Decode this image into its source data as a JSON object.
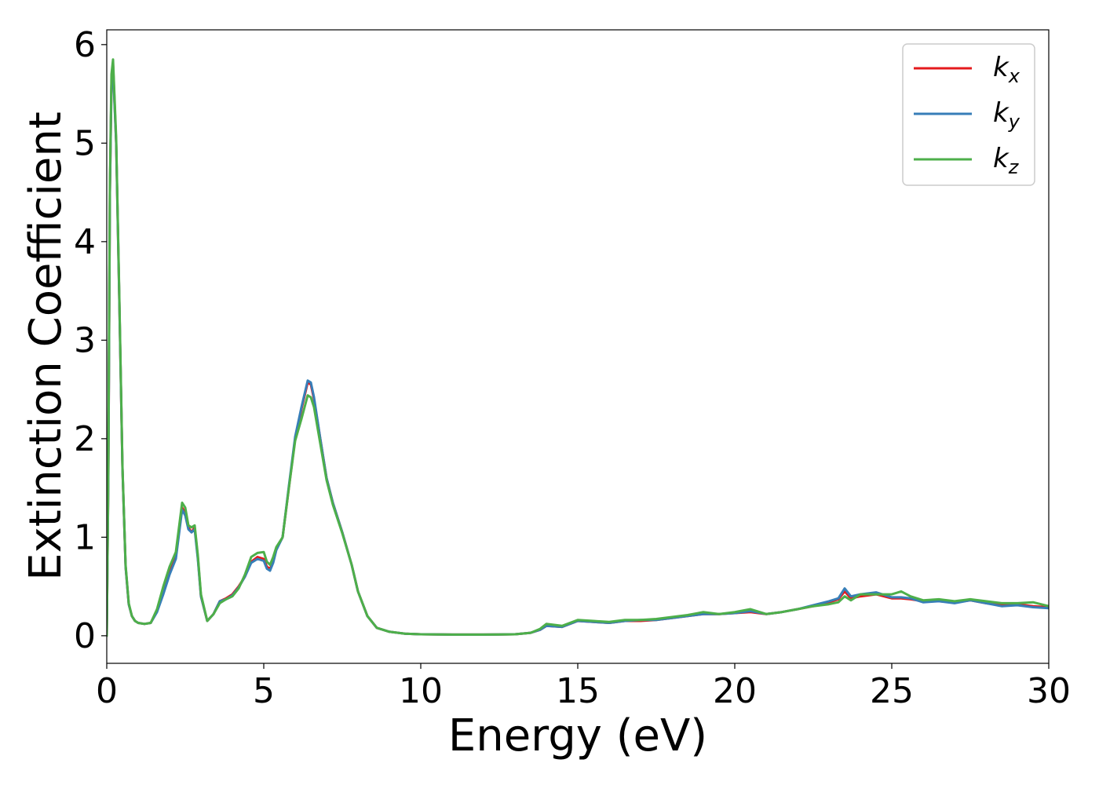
{
  "chart_data": {
    "type": "line",
    "xlabel": "Energy (eV)",
    "ylabel": "Extinction Coefficient",
    "xlim": [
      0,
      30
    ],
    "ylim": [
      -0.28,
      6.15
    ],
    "xticks": [
      0,
      5,
      10,
      15,
      20,
      25,
      30
    ],
    "xtick_labels": [
      "0",
      "5",
      "10",
      "15",
      "20",
      "25",
      "30"
    ],
    "yticks": [
      0,
      1,
      2,
      3,
      4,
      5,
      6
    ],
    "ytick_labels": [
      "0",
      "1",
      "2",
      "3",
      "4",
      "5",
      "6"
    ],
    "grid": false,
    "legend_position": "top-right",
    "series": [
      {
        "name": "k_x",
        "label_base": "k",
        "label_sub": "x",
        "color": "#e41a1c",
        "x": [
          0,
          0.05,
          0.1,
          0.15,
          0.2,
          0.3,
          0.4,
          0.5,
          0.6,
          0.7,
          0.8,
          0.9,
          1.0,
          1.2,
          1.4,
          1.6,
          1.8,
          2.0,
          2.2,
          2.4,
          2.5,
          2.6,
          2.7,
          2.8,
          2.9,
          3.0,
          3.2,
          3.4,
          3.6,
          3.8,
          4.0,
          4.2,
          4.4,
          4.6,
          4.8,
          5.0,
          5.1,
          5.2,
          5.3,
          5.4,
          5.6,
          5.8,
          6.0,
          6.2,
          6.4,
          6.5,
          6.6,
          6.8,
          7.0,
          7.2,
          7.5,
          7.8,
          8.0,
          8.3,
          8.6,
          9.0,
          9.5,
          10,
          11,
          12,
          13,
          13.5,
          13.8,
          14,
          14.5,
          15,
          15.5,
          16,
          16.5,
          17,
          17.5,
          18,
          18.5,
          19,
          19.5,
          20,
          20.5,
          21,
          21.5,
          22,
          22.5,
          23,
          23.3,
          23.5,
          23.7,
          24,
          24.5,
          25,
          25.3,
          25.6,
          26,
          26.5,
          27,
          27.5,
          28,
          28.5,
          29,
          29.5,
          30
        ],
        "y": [
          0,
          1.6,
          4.5,
          5.6,
          5.8,
          5.0,
          3.4,
          1.7,
          0.7,
          0.32,
          0.2,
          0.15,
          0.13,
          0.12,
          0.13,
          0.25,
          0.45,
          0.65,
          0.8,
          1.3,
          1.25,
          1.1,
          1.05,
          1.1,
          0.8,
          0.4,
          0.15,
          0.22,
          0.35,
          0.38,
          0.42,
          0.5,
          0.6,
          0.75,
          0.8,
          0.78,
          0.7,
          0.68,
          0.75,
          0.88,
          1.0,
          1.5,
          2.0,
          2.3,
          2.57,
          2.55,
          2.4,
          2.0,
          1.6,
          1.35,
          1.05,
          0.72,
          0.45,
          0.2,
          0.08,
          0.04,
          0.02,
          0.015,
          0.012,
          0.012,
          0.015,
          0.03,
          0.06,
          0.1,
          0.09,
          0.15,
          0.14,
          0.13,
          0.15,
          0.15,
          0.16,
          0.18,
          0.2,
          0.22,
          0.22,
          0.23,
          0.24,
          0.22,
          0.24,
          0.27,
          0.3,
          0.34,
          0.37,
          0.45,
          0.38,
          0.4,
          0.42,
          0.38,
          0.38,
          0.37,
          0.35,
          0.35,
          0.34,
          0.36,
          0.33,
          0.31,
          0.32,
          0.3,
          0.29
        ]
      },
      {
        "name": "k_y",
        "label_base": "k",
        "label_sub": "y",
        "color": "#377eb8",
        "x": [
          0,
          0.05,
          0.1,
          0.15,
          0.2,
          0.3,
          0.4,
          0.5,
          0.6,
          0.7,
          0.8,
          0.9,
          1.0,
          1.2,
          1.4,
          1.6,
          1.8,
          2.0,
          2.2,
          2.4,
          2.5,
          2.6,
          2.7,
          2.8,
          2.9,
          3.0,
          3.2,
          3.4,
          3.6,
          3.8,
          4.0,
          4.2,
          4.4,
          4.6,
          4.8,
          5.0,
          5.1,
          5.2,
          5.3,
          5.4,
          5.6,
          5.8,
          6.0,
          6.2,
          6.4,
          6.5,
          6.6,
          6.8,
          7.0,
          7.2,
          7.5,
          7.8,
          8.0,
          8.3,
          8.6,
          9.0,
          9.5,
          10,
          11,
          12,
          13,
          13.5,
          13.8,
          14,
          14.5,
          15,
          15.5,
          16,
          16.5,
          17,
          17.5,
          18,
          18.5,
          19,
          19.5,
          20,
          20.5,
          21,
          21.5,
          22,
          22.5,
          23,
          23.3,
          23.5,
          23.7,
          24,
          24.5,
          25,
          25.3,
          25.6,
          26,
          26.5,
          27,
          27.5,
          28,
          28.5,
          29,
          29.5,
          30
        ],
        "y": [
          0,
          1.6,
          4.5,
          5.6,
          5.75,
          5.0,
          3.4,
          1.7,
          0.7,
          0.32,
          0.2,
          0.15,
          0.13,
          0.12,
          0.13,
          0.24,
          0.42,
          0.62,
          0.78,
          1.28,
          1.22,
          1.08,
          1.05,
          1.08,
          0.78,
          0.4,
          0.15,
          0.22,
          0.35,
          0.37,
          0.41,
          0.49,
          0.6,
          0.74,
          0.78,
          0.76,
          0.68,
          0.66,
          0.74,
          0.87,
          1.0,
          1.52,
          2.02,
          2.32,
          2.59,
          2.57,
          2.42,
          2.0,
          1.6,
          1.35,
          1.05,
          0.72,
          0.45,
          0.2,
          0.08,
          0.04,
          0.02,
          0.015,
          0.012,
          0.012,
          0.015,
          0.03,
          0.06,
          0.1,
          0.09,
          0.15,
          0.14,
          0.13,
          0.15,
          0.16,
          0.16,
          0.18,
          0.2,
          0.22,
          0.22,
          0.23,
          0.25,
          0.22,
          0.24,
          0.27,
          0.31,
          0.35,
          0.38,
          0.48,
          0.4,
          0.42,
          0.44,
          0.39,
          0.39,
          0.38,
          0.34,
          0.35,
          0.33,
          0.36,
          0.33,
          0.3,
          0.31,
          0.29,
          0.28
        ]
      },
      {
        "name": "k_z",
        "label_base": "k",
        "label_sub": "z",
        "color": "#4daf4a",
        "x": [
          0,
          0.05,
          0.1,
          0.15,
          0.2,
          0.3,
          0.4,
          0.5,
          0.6,
          0.7,
          0.8,
          0.9,
          1.0,
          1.2,
          1.4,
          1.6,
          1.8,
          2.0,
          2.2,
          2.4,
          2.5,
          2.6,
          2.7,
          2.8,
          2.9,
          3.0,
          3.2,
          3.4,
          3.6,
          3.8,
          4.0,
          4.2,
          4.4,
          4.6,
          4.8,
          5.0,
          5.1,
          5.2,
          5.3,
          5.4,
          5.6,
          5.8,
          6.0,
          6.2,
          6.4,
          6.5,
          6.6,
          6.8,
          7.0,
          7.2,
          7.5,
          7.8,
          8.0,
          8.3,
          8.6,
          9.0,
          9.5,
          10,
          11,
          12,
          13,
          13.5,
          13.8,
          14,
          14.5,
          15,
          15.5,
          16,
          16.5,
          17,
          17.5,
          18,
          18.5,
          19,
          19.5,
          20,
          20.5,
          21,
          21.5,
          22,
          22.5,
          23,
          23.3,
          23.5,
          23.7,
          24,
          24.5,
          25,
          25.3,
          25.6,
          26,
          26.5,
          27,
          27.5,
          28,
          28.5,
          29,
          29.5,
          30
        ],
        "y": [
          0,
          1.7,
          4.6,
          5.7,
          5.85,
          5.05,
          3.45,
          1.72,
          0.72,
          0.33,
          0.2,
          0.15,
          0.13,
          0.12,
          0.13,
          0.27,
          0.5,
          0.7,
          0.85,
          1.35,
          1.3,
          1.12,
          1.1,
          1.12,
          0.82,
          0.42,
          0.15,
          0.22,
          0.33,
          0.37,
          0.4,
          0.48,
          0.62,
          0.8,
          0.84,
          0.85,
          0.75,
          0.72,
          0.8,
          0.9,
          1.0,
          1.5,
          1.98,
          2.2,
          2.44,
          2.42,
          2.32,
          1.95,
          1.58,
          1.33,
          1.04,
          0.72,
          0.45,
          0.2,
          0.08,
          0.04,
          0.02,
          0.015,
          0.012,
          0.012,
          0.015,
          0.03,
          0.07,
          0.12,
          0.1,
          0.16,
          0.15,
          0.14,
          0.16,
          0.16,
          0.17,
          0.19,
          0.21,
          0.24,
          0.22,
          0.24,
          0.27,
          0.22,
          0.24,
          0.27,
          0.3,
          0.32,
          0.34,
          0.4,
          0.36,
          0.42,
          0.42,
          0.42,
          0.45,
          0.4,
          0.36,
          0.37,
          0.35,
          0.37,
          0.35,
          0.33,
          0.33,
          0.34,
          0.3
        ]
      }
    ]
  }
}
